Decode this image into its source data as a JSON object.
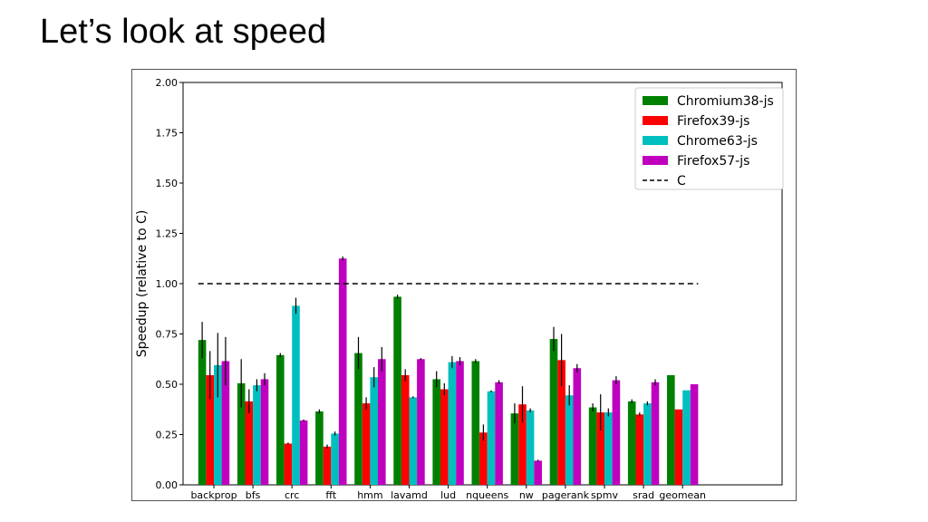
{
  "slide": {
    "title": "Let’s look at speed"
  },
  "chart_data": {
    "type": "bar",
    "title": "",
    "xlabel": "",
    "ylabel": "Speedup (relative to C)",
    "ylim": [
      0,
      2.0
    ],
    "yticks": [
      "0.00",
      "0.25",
      "0.50",
      "0.75",
      "1.00",
      "1.25",
      "1.50",
      "1.75",
      "2.00"
    ],
    "categories": [
      "backprop",
      "bfs",
      "crc",
      "fft",
      "hmm",
      "lavamd",
      "lud",
      "nqueens",
      "nw",
      "pagerank",
      "spmv",
      "srad",
      "geomean"
    ],
    "series": [
      {
        "name": "Chromium38-js",
        "color": "#008000",
        "values": [
          0.72,
          0.505,
          0.645,
          0.365,
          0.655,
          0.935,
          0.525,
          0.615,
          0.355,
          0.725,
          0.385,
          0.415,
          0.545
        ],
        "err": [
          0.09,
          0.12,
          0.01,
          0.01,
          0.08,
          0.01,
          0.04,
          0.01,
          0.05,
          0.06,
          0.02,
          0.01,
          0
        ]
      },
      {
        "name": "Firefox39-js",
        "color": "#ff0000",
        "values": [
          0.545,
          0.415,
          0.205,
          0.19,
          0.405,
          0.545,
          0.475,
          0.26,
          0.4,
          0.62,
          0.36,
          0.35,
          0.375
        ],
        "err": [
          0.12,
          0.06,
          0.005,
          0.01,
          0.03,
          0.03,
          0.03,
          0.04,
          0.09,
          0.13,
          0.09,
          0.01,
          0
        ]
      },
      {
        "name": "Chrome63-js",
        "color": "#00bfbf",
        "values": [
          0.595,
          0.495,
          0.89,
          0.255,
          0.535,
          0.435,
          0.61,
          0.465,
          0.37,
          0.445,
          0.36,
          0.405,
          0.47
        ],
        "err": [
          0.16,
          0.03,
          0.04,
          0.01,
          0.05,
          0.005,
          0.03,
          0.005,
          0.01,
          0.05,
          0.02,
          0.01,
          0
        ]
      },
      {
        "name": "Firefox57-js",
        "color": "#bf00bf",
        "values": [
          0.615,
          0.525,
          0.32,
          1.125,
          0.625,
          0.625,
          0.615,
          0.51,
          0.12,
          0.58,
          0.52,
          0.51,
          0.5
        ],
        "err": [
          0.12,
          0.03,
          0.005,
          0.01,
          0.06,
          0.005,
          0.02,
          0.01,
          0.005,
          0.02,
          0.02,
          0.015,
          0
        ]
      }
    ],
    "reference_line": {
      "name": "C",
      "value": 1.0,
      "style": "dashed"
    },
    "legend": {
      "position": "top-right"
    },
    "grid": false
  }
}
